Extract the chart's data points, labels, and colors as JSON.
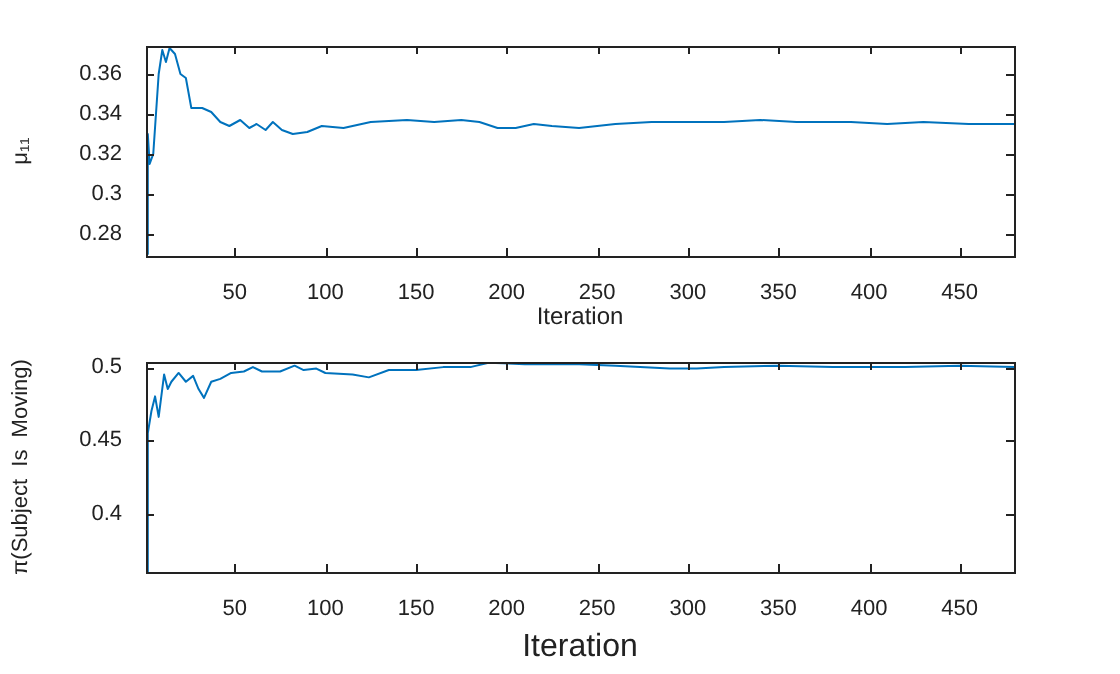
{
  "chart_data": [
    {
      "type": "line",
      "xlabel": "Iteration",
      "ylabel": "μ₁₁",
      "color": "#0072bd",
      "x": [
        1,
        2,
        3,
        5,
        8,
        10,
        12,
        14,
        17,
        20,
        23,
        26,
        32,
        37,
        42,
        47,
        53,
        58,
        62,
        67,
        71,
        76,
        82,
        90,
        98,
        110,
        125,
        145,
        160,
        175,
        185,
        195,
        205,
        215,
        225,
        240,
        260,
        280,
        300,
        320,
        340,
        360,
        390,
        410,
        430,
        455,
        480
      ],
      "values": [
        0.27,
        0.33,
        0.315,
        0.32,
        0.36,
        0.372,
        0.366,
        0.373,
        0.37,
        0.36,
        0.358,
        0.343,
        0.343,
        0.341,
        0.336,
        0.334,
        0.337,
        0.333,
        0.335,
        0.332,
        0.336,
        0.332,
        0.33,
        0.331,
        0.334,
        0.333,
        0.336,
        0.337,
        0.336,
        0.337,
        0.336,
        0.333,
        0.333,
        0.335,
        0.334,
        0.333,
        0.335,
        0.336,
        0.336,
        0.336,
        0.337,
        0.336,
        0.336,
        0.335,
        0.336,
        0.335,
        0.335
      ],
      "xlim": [
        1,
        480
      ],
      "xticks": [
        50,
        100,
        150,
        200,
        250,
        300,
        350,
        400,
        450
      ],
      "ylim": [
        0.269,
        0.374
      ],
      "yticks": [
        0.28,
        0.3,
        0.32,
        0.34,
        0.36
      ]
    },
    {
      "type": "line",
      "xlabel": "Iteration",
      "ylabel": "π(Subject  Is  Moving)",
      "color": "#0072bd",
      "x": [
        1,
        2,
        4,
        6,
        8,
        11,
        13,
        15,
        19,
        23,
        27,
        30,
        33,
        37,
        42,
        48,
        55,
        60,
        65,
        75,
        83,
        88,
        95,
        100,
        115,
        124,
        135,
        150,
        165,
        180,
        190,
        210,
        240,
        260,
        290,
        305,
        320,
        350,
        380,
        420,
        450,
        480
      ],
      "values": [
        0.36,
        0.455,
        0.47,
        0.48,
        0.466,
        0.495,
        0.485,
        0.49,
        0.496,
        0.49,
        0.494,
        0.485,
        0.479,
        0.49,
        0.492,
        0.496,
        0.497,
        0.5,
        0.497,
        0.497,
        0.501,
        0.498,
        0.499,
        0.496,
        0.495,
        0.493,
        0.498,
        0.498,
        0.5,
        0.5,
        0.503,
        0.502,
        0.502,
        0.501,
        0.499,
        0.499,
        0.5,
        0.501,
        0.5,
        0.5,
        0.501,
        0.5
      ],
      "xlim": [
        1,
        480
      ],
      "xticks": [
        50,
        100,
        150,
        200,
        250,
        300,
        350,
        400,
        450
      ],
      "ylim": [
        0.36,
        0.5035
      ],
      "yticks": [
        0.4,
        0.45,
        0.5
      ]
    }
  ]
}
